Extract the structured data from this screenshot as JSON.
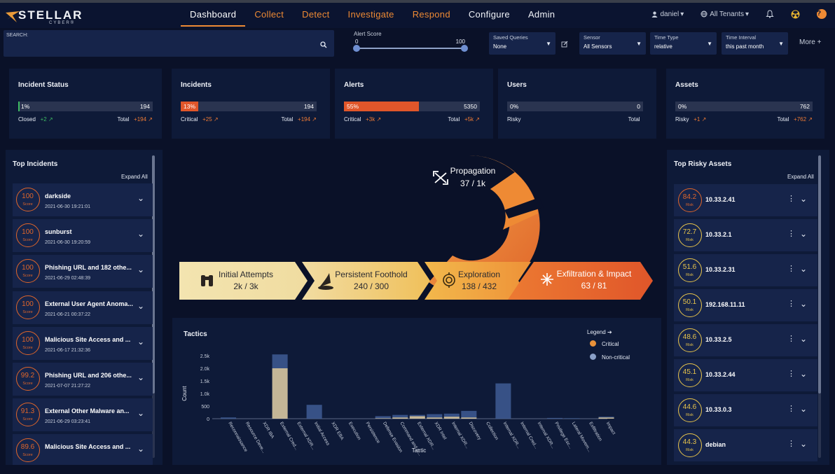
{
  "brand": {
    "title": "STELLAR",
    "subtitle": "CYBER®"
  },
  "nav": {
    "items": [
      {
        "label": "Dashboard",
        "active": true
      },
      {
        "label": "Collect"
      },
      {
        "label": "Detect"
      },
      {
        "label": "Investigate"
      },
      {
        "label": "Respond"
      },
      {
        "label": "Configure"
      },
      {
        "label": "Admin"
      }
    ],
    "user": "daniel",
    "tenants": "All Tenants",
    "help": "?"
  },
  "filters": {
    "search_label": "SEARCH:",
    "alert_score": {
      "label": "Alert Score",
      "min": "0",
      "max": "100",
      "low": 0,
      "high": 100
    },
    "saved_queries": {
      "label": "Saved Queries",
      "value": "None"
    },
    "sensor": {
      "label": "Sensor",
      "value": "All Sensors"
    },
    "time_type": {
      "label": "Time Type",
      "value": "relative"
    },
    "time_interval": {
      "label": "Time Interval",
      "value": "this past month"
    },
    "more": "More"
  },
  "cards": [
    {
      "title": "Incident Status",
      "pct": "1%",
      "fill": 0.01,
      "color": "#3dbb62",
      "total": "194",
      "left_label": "Closed",
      "left_delta": "+2",
      "right_label": "Total",
      "right_delta": "+194"
    },
    {
      "title": "Incidents",
      "pct": "13%",
      "fill": 0.13,
      "color": "#e0562a",
      "total": "194",
      "left_label": "Critical",
      "left_delta": "+25",
      "right_label": "Total",
      "right_delta": "+194"
    },
    {
      "title": "Alerts",
      "pct": "55%",
      "fill": 0.55,
      "color": "#e0562a",
      "total": "5350",
      "left_label": "Critical",
      "left_delta": "+3k",
      "right_label": "Total",
      "right_delta": "+5k"
    },
    {
      "title": "Users",
      "pct": "0%",
      "fill": 0,
      "color": "#e0562a",
      "total": "0",
      "left_label": "Risky",
      "left_delta": "",
      "right_label": "Total",
      "right_delta": ""
    },
    {
      "title": "Assets",
      "pct": "0%",
      "fill": 0,
      "color": "#e0562a",
      "total": "762",
      "left_label": "Risky",
      "left_delta": "+1",
      "right_label": "Total",
      "right_delta": "+762"
    }
  ],
  "top_incidents": {
    "title": "Top Incidents",
    "expand": "Expand All",
    "score_label": "Score",
    "items": [
      {
        "score": "100",
        "title": "darkside",
        "date": "2021-06-30 19:21:01"
      },
      {
        "score": "100",
        "title": "sunburst",
        "date": "2021-06-30 19:20:59"
      },
      {
        "score": "100",
        "title": "Phishing URL and 182 othe...",
        "date": "2021-06-29 02:48:39"
      },
      {
        "score": "100",
        "title": "External User Agent Anoma...",
        "date": "2021-06-21 00:37:22"
      },
      {
        "score": "100",
        "title": "Malicious Site Access and ...",
        "date": "2021-06-17 21:32:36"
      },
      {
        "score": "99.2",
        "title": "Phishing URL and 206 othe...",
        "date": "2021-07-07 21:27:22"
      },
      {
        "score": "91.3",
        "title": "External Other Malware an...",
        "date": "2021-06-29 03:23:41"
      },
      {
        "score": "89.6",
        "title": "Malicious Site Access and ...",
        "date": ""
      }
    ]
  },
  "top_assets": {
    "title": "Top Risky Assets",
    "expand": "Expand All",
    "risk_label": "Risk",
    "items": [
      {
        "risk": "84.2",
        "name": "10.33.2.41",
        "color": "#e0662a"
      },
      {
        "risk": "72.7",
        "name": "10.33.2.1",
        "color": "#e8c44a"
      },
      {
        "risk": "51.6",
        "name": "10.33.2.31",
        "color": "#e8c44a"
      },
      {
        "risk": "50.1",
        "name": "192.168.11.11",
        "color": "#e8c44a"
      },
      {
        "risk": "48.6",
        "name": "10.33.2.5",
        "color": "#e8c44a"
      },
      {
        "risk": "45.1",
        "name": "10.33.2.44",
        "color": "#e8c44a"
      },
      {
        "risk": "44.6",
        "name": "10.33.0.3",
        "color": "#e8c44a"
      },
      {
        "risk": "44.3",
        "name": "debian",
        "color": "#e8c44a"
      }
    ]
  },
  "kill_chain": {
    "propagation": {
      "label": "Propagation",
      "value": "37 / 1k"
    },
    "stages": [
      {
        "label": "Initial Attempts",
        "value": "2k / 3k",
        "icon": "binoculars-icon"
      },
      {
        "label": "Persistent Foothold",
        "value": "240 / 300",
        "icon": "wizard-hat-icon"
      },
      {
        "label": "Exploration",
        "value": "138 / 432",
        "icon": "target-icon"
      },
      {
        "label": "Exfiltration & Impact",
        "value": "63 / 81",
        "icon": "burst-icon"
      }
    ]
  },
  "tactics": {
    "title": "Tactics",
    "legend_title": "Legend",
    "legend": [
      {
        "name": "Critical",
        "color": "#e8913a"
      },
      {
        "name": "Non-critical",
        "color": "#8aa0c8"
      }
    ]
  },
  "chart_data": {
    "type": "bar",
    "xlabel": "Tactic",
    "ylabel": "Count",
    "ylim": [
      0,
      2500
    ],
    "yticks": [
      "0",
      "500",
      "1.0k",
      "1.5k",
      "2.0k",
      "2.5k"
    ],
    "grid": false,
    "legend": "top-right",
    "categories": [
      "Reconnaissance",
      "Resource Deve...",
      "XDR IBA",
      "External Cred...",
      "External XDR...",
      "Initial Access",
      "XDR EBA",
      "Execution",
      "Persistence",
      "Defense Evasion",
      "Command and C...",
      "External XDR...",
      "XDR Intel",
      "Internal XDR...",
      "Discovery",
      "Collection",
      "Internal XDR...",
      "Internal Cred...",
      "Internal XDR...",
      "Privilege Esc...",
      "Lateral Movem...",
      "Exfiltration",
      "Impact"
    ],
    "series": [
      {
        "name": "Critical",
        "values": [
          0,
          0,
          0,
          2000,
          0,
          0,
          0,
          0,
          0,
          20,
          50,
          100,
          50,
          80,
          50,
          0,
          0,
          0,
          0,
          0,
          0,
          0,
          50
        ]
      },
      {
        "name": "Non-critical",
        "values": [
          50,
          0,
          0,
          550,
          0,
          550,
          0,
          0,
          0,
          80,
          100,
          50,
          130,
          120,
          260,
          0,
          1400,
          0,
          0,
          30,
          20,
          0,
          30
        ]
      }
    ]
  }
}
